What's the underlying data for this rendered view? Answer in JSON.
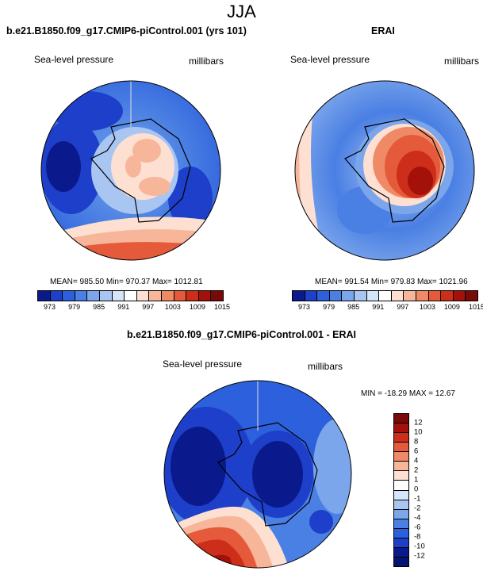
{
  "page_title": "JJA",
  "panel_model": {
    "title": "b.e21.B1850.f09_g17.CMIP6-piControl.001 (yrs 101)",
    "variable": "Sea-level pressure",
    "units": "millibars",
    "stats": "MEAN= 985.50  Min= 970.37  Max= 1012.81"
  },
  "panel_obs": {
    "title": "ERAI",
    "variable": "Sea-level pressure",
    "units": "millibars",
    "stats": "MEAN= 991.54  Min= 979.83  Max= 1021.96"
  },
  "panel_diff": {
    "title": "b.e21.B1850.f09_g17.CMIP6-piControl.001 - ERAI",
    "variable": "Sea-level pressure",
    "units": "millibars",
    "stats": "MIN = -18.29 MAX =  12.67"
  },
  "colorbar_abs": {
    "labels": [
      "973",
      "979",
      "985",
      "991",
      "997",
      "1003",
      "1009",
      "1015"
    ],
    "colors": [
      "#0a1a8c",
      "#1e3fc9",
      "#2d60dc",
      "#4a7fe3",
      "#7ba6ec",
      "#a9c6f2",
      "#d6e6fa",
      "#ffffff",
      "#fde0d2",
      "#f7b59a",
      "#f08a66",
      "#e45a3a",
      "#cc2e1a",
      "#a4110b",
      "#7a0a08"
    ]
  },
  "colorbar_diff": {
    "labels": [
      "12",
      "10",
      "8",
      "6",
      "4",
      "2",
      "1",
      "0",
      "-1",
      "-2",
      "-4",
      "-6",
      "-8",
      "-10",
      "-12"
    ],
    "colors": [
      "#7a0a08",
      "#a4110b",
      "#cc2e1a",
      "#e45a3a",
      "#f08a66",
      "#f7b59a",
      "#fde0d2",
      "#ffffff",
      "#d6e6fa",
      "#a9c6f2",
      "#7ba6ec",
      "#4a7fe3",
      "#2d60dc",
      "#1e3fc9",
      "#0a1a8c",
      "#081270"
    ]
  }
}
